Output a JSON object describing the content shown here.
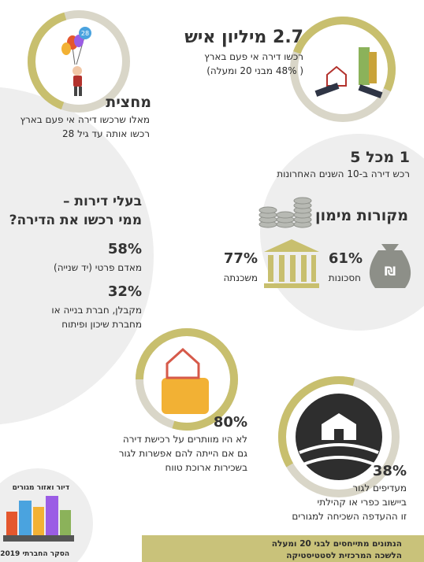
{
  "balloon_label": "28",
  "owners_total": {
    "headline": "2.7 מיליון איש",
    "lines": [
      "רכשו דירה אי פעם בארץ",
      "( 48% מבני 20 ומעלה)"
    ]
  },
  "half": {
    "headline": "מחצית",
    "lines": [
      "מאלו שרכשו דירה אי פעם בארץ",
      "רכשו אותה עד גיל 28"
    ]
  },
  "recent": {
    "headline": "1 מכל 5",
    "lines": [
      "רכש דירה ב-10 השנים האחרונות"
    ]
  },
  "financing": {
    "title": "מקורות מימון",
    "items": [
      {
        "percent": "61%",
        "label": "חסכונות"
      },
      {
        "percent": "77%",
        "label": "משכנתה"
      }
    ]
  },
  "sellers": {
    "title_lines": [
      "בעלי דירות –",
      "ממי רכשו את הדירה?"
    ],
    "items": [
      {
        "percent": "58%",
        "lines": [
          "מאדם פרטי (יד שנייה)"
        ]
      },
      {
        "percent": "32%",
        "lines": [
          "מקבלן, חברת בנייה או",
          "מחברת שיכון ופיתוח"
        ]
      }
    ]
  },
  "renting": {
    "percent": "80%",
    "lines": [
      "לא היו מוותרים על רכישת דירה",
      "גם אם הייתה להם אפשרות לגור",
      "בשכירות ארוכת טווח"
    ]
  },
  "rural": {
    "percent": "38%",
    "lines": [
      "מעדיפים לגור",
      "ביישוב כפרי או קהילתי",
      "זו ההעדפה השכיחה למגורים"
    ]
  },
  "badge": {
    "title": "דיור ואזור מגורים",
    "survey": "הסקר החברתי 2019"
  },
  "footer": {
    "lines": [
      "הנתונים מתייחסים לבני 20 ומעלה",
      "הלשכה המרכזית לסטטיסטיקה"
    ]
  }
}
